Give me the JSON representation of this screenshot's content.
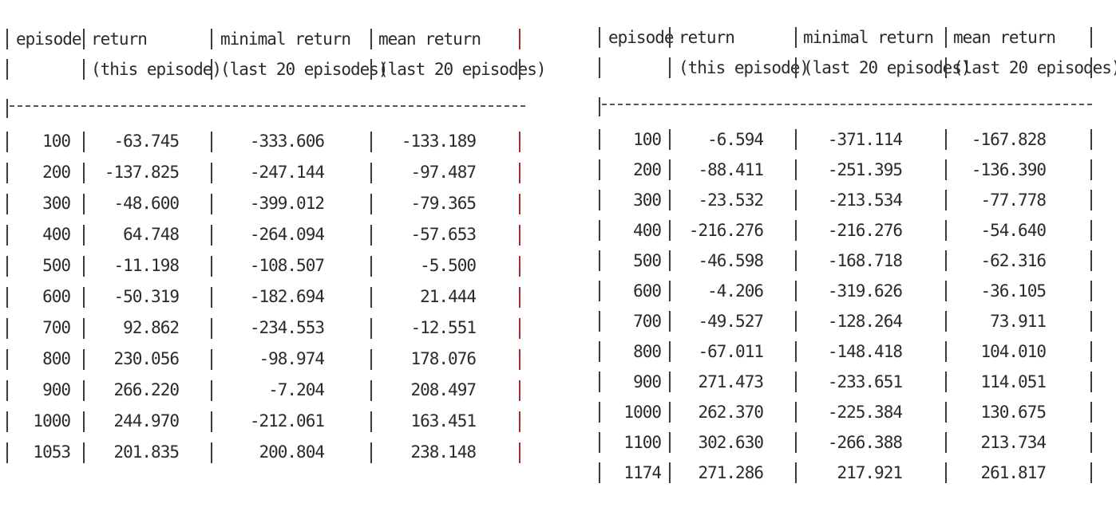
{
  "tables": [
    {
      "id": "left",
      "header": {
        "episode": "episode",
        "return_l1": "return",
        "return_l2": "(this episode)",
        "min_l1": "minimal return",
        "min_l2": "(last 20 episodes)",
        "mean_l1": "mean return",
        "mean_l2": "(last 20 episodes)"
      },
      "rows": [
        {
          "episode": "100",
          "return": "-63.745",
          "min": "-333.606",
          "mean": "-133.189"
        },
        {
          "episode": "200",
          "return": "-137.825",
          "min": "-247.144",
          "mean": "-97.487"
        },
        {
          "episode": "300",
          "return": "-48.600",
          "min": "-399.012",
          "mean": "-79.365"
        },
        {
          "episode": "400",
          "return": "64.748",
          "min": "-264.094",
          "mean": "-57.653"
        },
        {
          "episode": "500",
          "return": "-11.198",
          "min": "-108.507",
          "mean": "-5.500"
        },
        {
          "episode": "600",
          "return": "-50.319",
          "min": "-182.694",
          "mean": "21.444"
        },
        {
          "episode": "700",
          "return": "92.862",
          "min": "-234.553",
          "mean": "-12.551"
        },
        {
          "episode": "800",
          "return": "230.056",
          "min": "-98.974",
          "mean": "178.076"
        },
        {
          "episode": "900",
          "return": "266.220",
          "min": "-7.204",
          "mean": "208.497"
        },
        {
          "episode": "1000",
          "return": "244.970",
          "min": "-212.061",
          "mean": "163.451"
        },
        {
          "episode": "1053",
          "return": "201.835",
          "min": "200.804",
          "mean": "238.148"
        }
      ]
    },
    {
      "id": "right",
      "header": {
        "episode": "episode",
        "return_l1": "return",
        "return_l2": "(this episode)",
        "min_l1": "minimal return",
        "min_l2": "(last 20 episodes)",
        "mean_l1": "mean return",
        "mean_l2": "(last 20 episodes)"
      },
      "rows": [
        {
          "episode": "100",
          "return": "-6.594",
          "min": "-371.114",
          "mean": "-167.828"
        },
        {
          "episode": "200",
          "return": "-88.411",
          "min": "-251.395",
          "mean": "-136.390"
        },
        {
          "episode": "300",
          "return": "-23.532",
          "min": "-213.534",
          "mean": "-77.778"
        },
        {
          "episode": "400",
          "return": "-216.276",
          "min": "-216.276",
          "mean": "-54.640"
        },
        {
          "episode": "500",
          "return": "-46.598",
          "min": "-168.718",
          "mean": "-62.316"
        },
        {
          "episode": "600",
          "return": "-4.206",
          "min": "-319.626",
          "mean": "-36.105"
        },
        {
          "episode": "700",
          "return": "-49.527",
          "min": "-128.264",
          "mean": "73.911"
        },
        {
          "episode": "800",
          "return": "-67.011",
          "min": "-148.418",
          "mean": "104.010"
        },
        {
          "episode": "900",
          "return": "271.473",
          "min": "-233.651",
          "mean": "114.051"
        },
        {
          "episode": "1000",
          "return": "262.370",
          "min": "-225.384",
          "mean": "130.675"
        },
        {
          "episode": "1100",
          "return": "302.630",
          "min": "-266.388",
          "mean": "213.734"
        },
        {
          "episode": "1174",
          "return": "271.286",
          "min": "217.921",
          "mean": "261.817"
        }
      ]
    }
  ]
}
